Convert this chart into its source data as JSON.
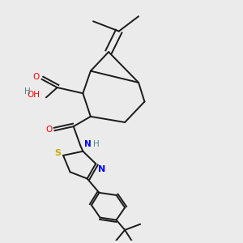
{
  "background_color": "#ebebeb",
  "bond_color": "#1a1a1a",
  "atom_colors": {
    "O": "#ff0000",
    "N": "#0000ff",
    "S": "#ccaa00",
    "H": "#4a8a8a",
    "C": "#1a1a1a"
  },
  "figsize": [
    3.0,
    3.0
  ],
  "dpi": 100
}
